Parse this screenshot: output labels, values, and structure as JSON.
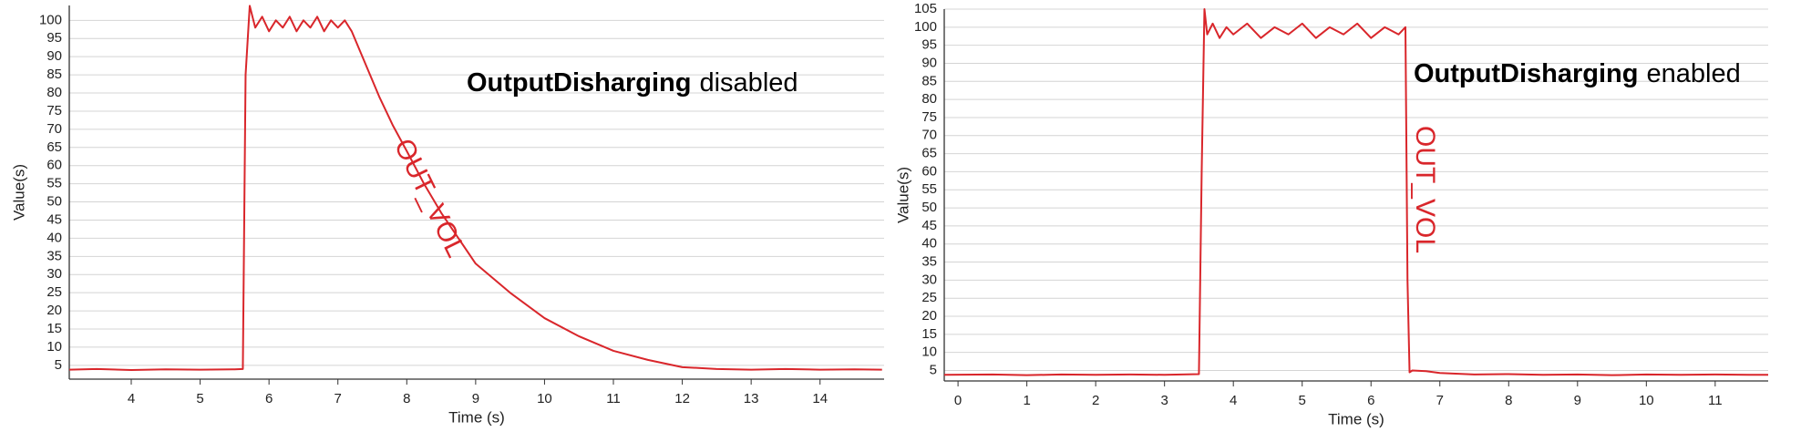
{
  "chart_data": [
    {
      "type": "line",
      "xlabel": "Time (s)",
      "ylabel": "Value(s)",
      "annotation": {
        "bold": "OutputDisharging",
        "text": "disabled"
      },
      "xlim": [
        3.1,
        14.93
      ],
      "ylim": [
        1.2,
        104.1
      ],
      "xticks": [
        4,
        5,
        6,
        7,
        8,
        9,
        10,
        11,
        12,
        13,
        14
      ],
      "yticks": [
        5,
        10,
        15,
        20,
        25,
        30,
        35,
        40,
        45,
        50,
        55,
        60,
        65,
        70,
        75,
        80,
        85,
        90,
        95,
        100
      ],
      "grid": true,
      "x": [
        3.1,
        3.5,
        4.0,
        4.5,
        5.0,
        5.5,
        5.62,
        5.66,
        5.72,
        5.8,
        5.9,
        6.0,
        6.1,
        6.2,
        6.3,
        6.4,
        6.5,
        6.6,
        6.7,
        6.8,
        6.9,
        7.0,
        7.1,
        7.2,
        7.4,
        7.6,
        7.8,
        8.0,
        8.25,
        8.5,
        8.75,
        9.0,
        9.5,
        10.0,
        10.5,
        11.0,
        11.5,
        12.0,
        12.5,
        13.0,
        13.5,
        14.0,
        14.5,
        14.9
      ],
      "series": [
        {
          "name": "OUT_VOL",
          "color": "#d9262b",
          "values": [
            3.8,
            4.0,
            3.7,
            3.9,
            3.8,
            3.9,
            4.0,
            85,
            104,
            98,
            101,
            97,
            100,
            98,
            101,
            97,
            100,
            98,
            101,
            97,
            100,
            98,
            100,
            97,
            88,
            79,
            71,
            64,
            55,
            47,
            40,
            33,
            25,
            18,
            13,
            9,
            6.5,
            4.5,
            4.0,
            3.8,
            4.0,
            3.8,
            3.9,
            3.8
          ]
        }
      ]
    },
    {
      "type": "line",
      "xlabel": "Time (s)",
      "ylabel": "Value(s)",
      "annotation": {
        "bold": "OutputDisharging",
        "text": "enabled"
      },
      "xlim": [
        -0.2,
        11.77
      ],
      "ylim": [
        2.1,
        105
      ],
      "xticks": [
        0,
        1,
        2,
        3,
        4,
        5,
        6,
        7,
        8,
        9,
        10,
        11
      ],
      "yticks": [
        5,
        10,
        15,
        20,
        25,
        30,
        35,
        40,
        45,
        50,
        55,
        60,
        65,
        70,
        75,
        80,
        85,
        90,
        95,
        100,
        105
      ],
      "grid": true,
      "x": [
        -0.2,
        0.5,
        1,
        1.5,
        2,
        2.5,
        3,
        3.5,
        3.54,
        3.58,
        3.62,
        3.7,
        3.8,
        3.9,
        4.0,
        4.2,
        4.4,
        4.6,
        4.8,
        5.0,
        5.2,
        5.4,
        5.6,
        5.8,
        6.0,
        6.2,
        6.4,
        6.5,
        6.53,
        6.56,
        6.6,
        6.8,
        7.0,
        7.5,
        8,
        8.5,
        9,
        9.5,
        10,
        10.5,
        11,
        11.5,
        11.77
      ],
      "series": [
        {
          "name": "OUT_VOL",
          "color": "#d9262b",
          "values": [
            3.8,
            3.9,
            3.7,
            3.9,
            3.8,
            3.9,
            3.8,
            4.0,
            60,
            105,
            98,
            101,
            97,
            100,
            98,
            101,
            97,
            100,
            98,
            101,
            97,
            100,
            98,
            101,
            97,
            100,
            98,
            100,
            30,
            4.5,
            5.0,
            4.8,
            4.3,
            3.9,
            4.0,
            3.8,
            3.9,
            3.7,
            3.9,
            3.8,
            3.9,
            3.8,
            3.8
          ]
        }
      ]
    }
  ]
}
